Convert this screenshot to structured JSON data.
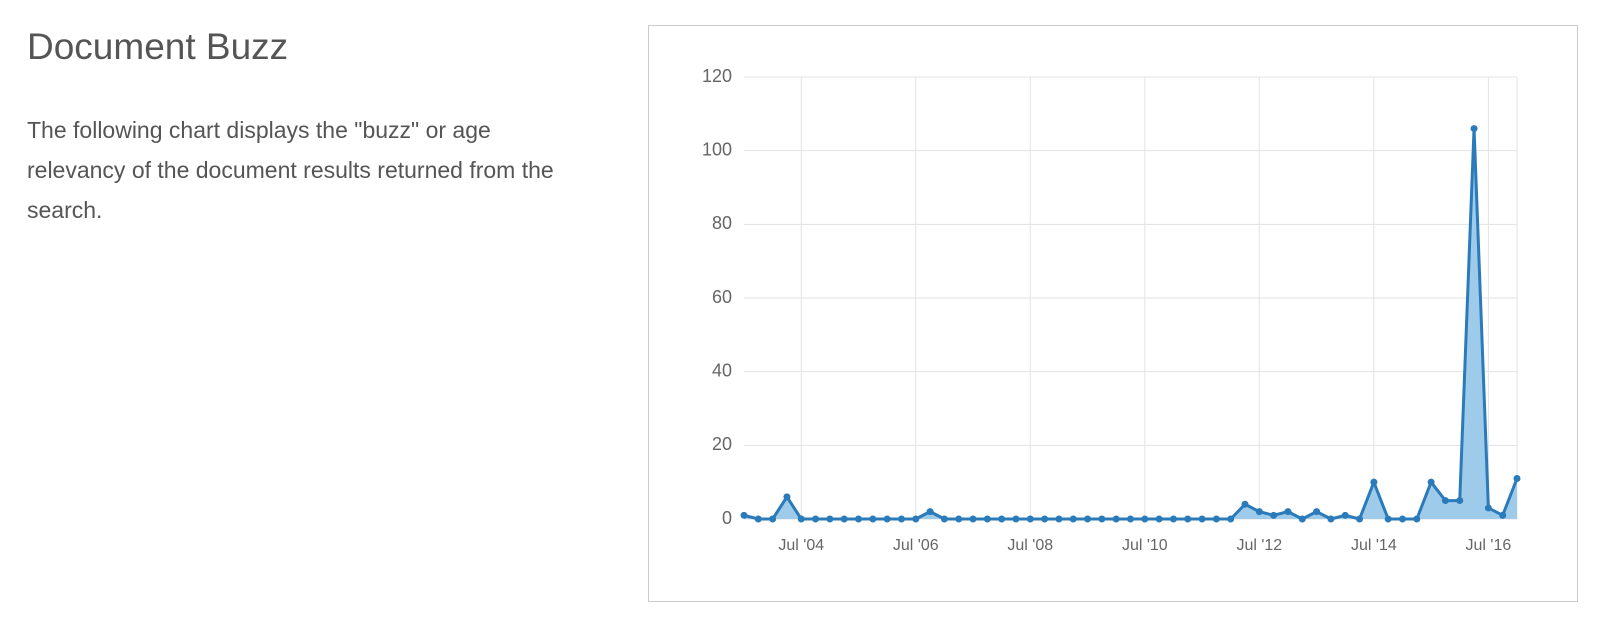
{
  "title": "Document Buzz",
  "description": "The following chart displays the \"buzz\" or age relevancy of the document results returned from the search.",
  "chart_data": {
    "type": "area",
    "categories": [
      null,
      null,
      null,
      null,
      "Jul '04",
      null,
      null,
      null,
      null,
      null,
      null,
      null,
      "Jul '06",
      null,
      null,
      null,
      null,
      null,
      null,
      null,
      "Jul '08",
      null,
      null,
      null,
      null,
      null,
      null,
      null,
      "Jul '10",
      null,
      null,
      null,
      null,
      null,
      null,
      null,
      "Jul '12",
      null,
      null,
      null,
      null,
      null,
      null,
      null,
      "Jul '14",
      null,
      null,
      null,
      null,
      null,
      null,
      null,
      "Jul '16",
      null,
      null
    ],
    "values": [
      1,
      0,
      0,
      6,
      0,
      0,
      0,
      0,
      0,
      0,
      0,
      0,
      0,
      2,
      0,
      0,
      0,
      0,
      0,
      0,
      0,
      0,
      0,
      0,
      0,
      0,
      0,
      0,
      0,
      0,
      0,
      0,
      0,
      0,
      0,
      4,
      2,
      1,
      2,
      0,
      2,
      0,
      1,
      0,
      10,
      0,
      0,
      0,
      10,
      5,
      5,
      106,
      3,
      1,
      11
    ],
    "color": "#2b7bba",
    "fill_color": "#9ecbea",
    "ylim": [
      0,
      120
    ],
    "yticks": [
      0,
      20,
      40,
      60,
      80,
      100,
      120
    ],
    "grid": true,
    "markers": true
  }
}
